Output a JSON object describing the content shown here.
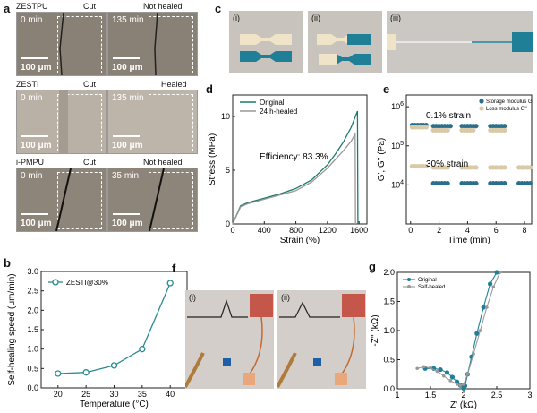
{
  "panels": {
    "a": "a",
    "b": "b",
    "c": "c",
    "d": "d",
    "e": "e",
    "f": "f",
    "g": "g"
  },
  "panel_a": {
    "rows": [
      {
        "name": "ZESTPU",
        "cut": "Cut",
        "status": "Not healed",
        "t0": "0 min",
        "t1": "135 min",
        "scale": "100 μm"
      },
      {
        "name": "ZESTI",
        "cut": "Cut",
        "status": "Healed",
        "t0": "0 min",
        "t1": "135 min",
        "scale": "100 μm"
      },
      {
        "name": "i-PMPU",
        "cut": "Cut",
        "status": "Not healed",
        "t0": "0 min",
        "t1": "35 min",
        "scale": "100 μm"
      }
    ],
    "colors": {
      "zestpu": "#8a8176",
      "zesti": "#b9b0a6",
      "ipmpu": "#8d857a"
    }
  },
  "panel_c": {
    "labels": [
      "(i)",
      "(ii)",
      "(iii)"
    ],
    "accent": "#1f7f96",
    "beige": "#efe3c8"
  },
  "panel_f": {
    "labels": [
      "(i)",
      "(ii)"
    ]
  },
  "chart_data": [
    {
      "id": "b",
      "type": "line",
      "xlabel": "Temperature (°C)",
      "ylabel": "Self-healing speed (μm/min)",
      "xlim": [
        17,
        43
      ],
      "ylim": [
        0,
        3.0
      ],
      "xticks": [
        20,
        25,
        30,
        35,
        40
      ],
      "yticks": [
        0,
        0.5,
        1.0,
        1.5,
        2.0,
        2.5,
        3.0
      ],
      "ytick_labels": [
        "0.0",
        "0.5",
        "1.0",
        "1.5",
        "2.0",
        "2.5",
        "3.0"
      ],
      "series": [
        {
          "name": "ZESTI@30%",
          "color": "#2a8a8f",
          "x": [
            20,
            25,
            30,
            35,
            40
          ],
          "y": [
            0.37,
            0.4,
            0.58,
            1.0,
            2.7
          ]
        }
      ],
      "legend": "top-left"
    },
    {
      "id": "d",
      "type": "line",
      "xlabel": "Strain (%)",
      "ylabel": "Stress (MPa)",
      "xlim": [
        0,
        1700
      ],
      "ylim": [
        0,
        12
      ],
      "xticks": [
        0,
        400,
        800,
        1200,
        1600
      ],
      "yticks": [
        0,
        5,
        10
      ],
      "annotation": "Efficiency: 83.3%",
      "series": [
        {
          "name": "Original",
          "color": "#1d7a6c",
          "x": [
            0,
            100,
            200,
            400,
            600,
            800,
            1000,
            1200,
            1300,
            1400,
            1500,
            1580,
            1585
          ],
          "y": [
            0,
            1.7,
            2.0,
            2.4,
            2.8,
            3.3,
            4.1,
            5.5,
            6.5,
            7.6,
            9.0,
            10.5,
            0
          ]
        },
        {
          "name": "24 h-healed",
          "color": "#999999",
          "x": [
            0,
            100,
            200,
            400,
            600,
            800,
            1000,
            1200,
            1300,
            1400,
            1500,
            1550,
            1555
          ],
          "y": [
            0,
            1.6,
            1.9,
            2.3,
            2.7,
            3.1,
            3.9,
            5.2,
            6.0,
            6.8,
            7.7,
            8.4,
            0
          ]
        }
      ],
      "legend": "top-left"
    },
    {
      "id": "e",
      "type": "scatter",
      "xlabel": "Time (min)",
      "ylabel": "G', G'' (Pa)",
      "xlim": [
        -0.3,
        8.5
      ],
      "ylim": [
        1000,
        2000000
      ],
      "yscale": "log",
      "xticks": [
        0,
        2,
        4,
        6,
        8
      ],
      "yticks": [
        10000,
        100000,
        1000000
      ],
      "ytick_labels": [
        "10^4",
        "10^5",
        "10^6"
      ],
      "annotations": [
        "0.1% strain",
        "30% strain"
      ],
      "series": [
        {
          "name": "Storage modulus G'",
          "color": "#2a6f8c",
          "segments": [
            {
              "x": [
                0.1,
                0.3,
                0.5,
                0.7,
                0.9,
                1.1
              ],
              "y": [
                340000,
                340000,
                340000,
                340000,
                340000,
                340000
              ]
            },
            {
              "x": [
                1.6,
                1.8,
                2.0,
                2.2,
                2.4,
                2.6,
                2.8
              ],
              "y": [
                320000,
                320000,
                320000,
                320000,
                320000,
                320000,
                320000
              ]
            },
            {
              "x": [
                3.6,
                3.8,
                4.0,
                4.2,
                4.4,
                4.6
              ],
              "y": [
                320000,
                320000,
                320000,
                320000,
                320000,
                320000
              ]
            },
            {
              "x": [
                5.6,
                5.8,
                6.0,
                6.2,
                6.4,
                6.6
              ],
              "y": [
                320000,
                320000,
                320000,
                320000,
                320000,
                320000
              ]
            },
            {
              "x": [
                1.6,
                1.8,
                2.0,
                2.2,
                2.4,
                2.6
              ],
              "y": [
                11000,
                11000,
                11000,
                11000,
                11000,
                11000
              ]
            },
            {
              "x": [
                3.6,
                3.8,
                4.0,
                4.2,
                4.4,
                4.6
              ],
              "y": [
                11000,
                11000,
                11000,
                11000,
                11000,
                11000
              ]
            },
            {
              "x": [
                5.6,
                5.8,
                6.0,
                6.2,
                6.4,
                6.6
              ],
              "y": [
                11000,
                11000,
                11000,
                11000,
                11000,
                11000
              ]
            },
            {
              "x": [
                7.6,
                7.8,
                8.0,
                8.2,
                8.4
              ],
              "y": [
                11000,
                11000,
                11000,
                11000,
                11000
              ]
            }
          ]
        },
        {
          "name": "Loss modulus G''",
          "color": "#d9c9a6",
          "segments": [
            {
              "x": [
                0.1,
                0.3,
                0.5,
                0.7,
                0.9,
                1.1
              ],
              "y": [
                300000,
                300000,
                300000,
                300000,
                300000,
                300000
              ]
            },
            {
              "x": [
                1.6,
                1.8,
                2.0,
                2.2,
                2.4,
                2.6
              ],
              "y": [
                250000,
                250000,
                250000,
                250000,
                250000,
                250000
              ]
            },
            {
              "x": [
                3.6,
                3.8,
                4.0,
                4.2,
                4.4
              ],
              "y": [
                250000,
                250000,
                250000,
                250000,
                250000
              ]
            },
            {
              "x": [
                5.6,
                5.8,
                6.0,
                6.2,
                6.4,
                6.6
              ],
              "y": [
                250000,
                250000,
                250000,
                250000,
                250000,
                250000
              ]
            },
            {
              "x": [
                0.1,
                0.3,
                0.5,
                0.7,
                0.9,
                1.1
              ],
              "y": [
                30000,
                30000,
                30000,
                30000,
                30000,
                30000
              ]
            },
            {
              "x": [
                1.6,
                1.8,
                2.0,
                2.2,
                2.4,
                2.6
              ],
              "y": [
                28000,
                28000,
                28000,
                28000,
                28000,
                28000
              ]
            },
            {
              "x": [
                3.6,
                3.8,
                4.0,
                4.2,
                4.4,
                4.6
              ],
              "y": [
                28000,
                28000,
                28000,
                28000,
                28000,
                28000
              ]
            },
            {
              "x": [
                5.6,
                5.8,
                6.0,
                6.2,
                6.4,
                6.6
              ],
              "y": [
                28000,
                28000,
                28000,
                28000,
                28000,
                28000
              ]
            },
            {
              "x": [
                7.6,
                7.8,
                8.0,
                8.2,
                8.4
              ],
              "y": [
                28000,
                28000,
                28000,
                28000,
                28000
              ]
            }
          ]
        }
      ],
      "legend": "top-right"
    },
    {
      "id": "g",
      "type": "line",
      "xlabel": "Z' (kΩ)",
      "ylabel": "-Z'' (kΩ)",
      "xlim": [
        1.0,
        3.0
      ],
      "ylim": [
        0,
        2.0
      ],
      "xticks": [
        1.0,
        1.5,
        2.0,
        2.5,
        3.0
      ],
      "yticks": [
        0,
        0.5,
        1.0,
        1.5,
        2.0
      ],
      "ytick_labels": [
        "0.0",
        "0.5",
        "1.0",
        "1.5",
        "2.0"
      ],
      "series": [
        {
          "name": "Original",
          "color": "#1f7f96",
          "x": [
            1.42,
            1.55,
            1.65,
            1.75,
            1.83,
            1.9,
            1.95,
            2.0,
            2.02,
            2.06,
            2.12,
            2.2,
            2.3,
            2.4,
            2.5
          ],
          "y": [
            0.35,
            0.35,
            0.33,
            0.28,
            0.2,
            0.12,
            0.06,
            0.01,
            0.05,
            0.25,
            0.55,
            0.95,
            1.4,
            1.8,
            2.0
          ]
        },
        {
          "name": "Self-healed",
          "color": "#999999",
          "x": [
            1.3,
            1.4,
            1.5,
            1.6,
            1.7,
            1.8,
            1.9,
            1.95,
            2.0,
            2.06,
            2.15,
            2.25,
            2.35,
            2.45,
            2.55
          ],
          "y": [
            0.35,
            0.38,
            0.36,
            0.3,
            0.22,
            0.14,
            0.08,
            0.06,
            0.08,
            0.25,
            0.6,
            1.0,
            1.4,
            1.75,
            2.0
          ]
        }
      ],
      "legend": "top-left"
    }
  ]
}
